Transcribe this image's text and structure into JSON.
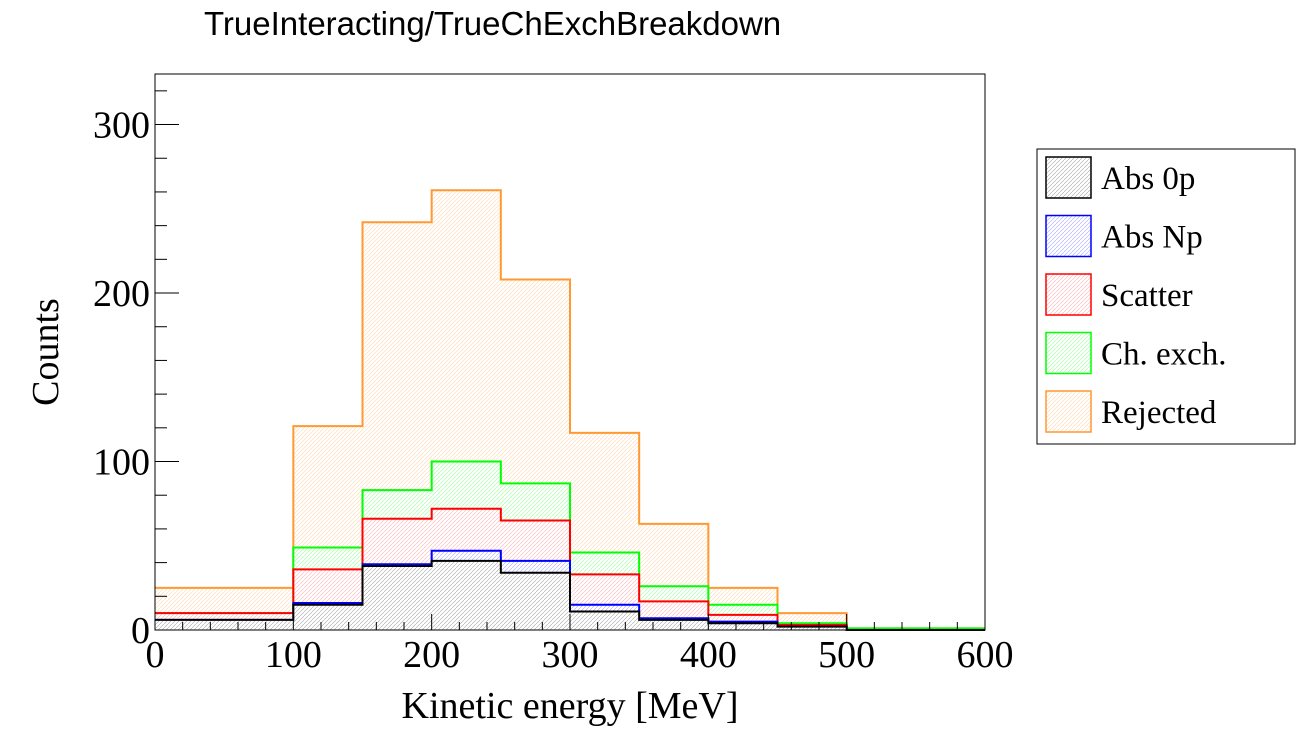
{
  "chart_data": {
    "type": "histogram",
    "title": "TrueInteracting/TrueChExchBreakdown",
    "xlabel": "Kinetic energy [MeV]",
    "ylabel": "Counts",
    "xlim": [
      0,
      600
    ],
    "ylim": [
      0,
      330
    ],
    "x_ticks": [
      0,
      100,
      200,
      300,
      400,
      500,
      600
    ],
    "y_ticks": [
      0,
      100,
      200,
      300
    ],
    "bin_edges": [
      0,
      100,
      150,
      200,
      250,
      300,
      350,
      400,
      450,
      500,
      600
    ],
    "stacked": true,
    "legend_position": "right",
    "grid": false,
    "series": [
      {
        "name": "Abs 0p",
        "color": "#000000",
        "cumulative": [
          6,
          15,
          38,
          41,
          34,
          11,
          6,
          4,
          2,
          0
        ]
      },
      {
        "name": "Abs Np",
        "color": "#0000ff",
        "cumulative": [
          6,
          16,
          39,
          47,
          41,
          15,
          7,
          5,
          2,
          0
        ]
      },
      {
        "name": "Scatter",
        "color": "#ff0000",
        "cumulative": [
          10,
          36,
          66,
          72,
          65,
          33,
          17,
          9,
          3,
          0
        ]
      },
      {
        "name": "Ch. exch.",
        "color": "#00ff00",
        "cumulative": [
          10,
          49,
          83,
          100,
          87,
          46,
          26,
          15,
          4,
          1
        ]
      },
      {
        "name": "Rejected",
        "color": "#ff9933",
        "cumulative": [
          25,
          121,
          242,
          261,
          208,
          117,
          63,
          25,
          10,
          1
        ]
      }
    ]
  }
}
